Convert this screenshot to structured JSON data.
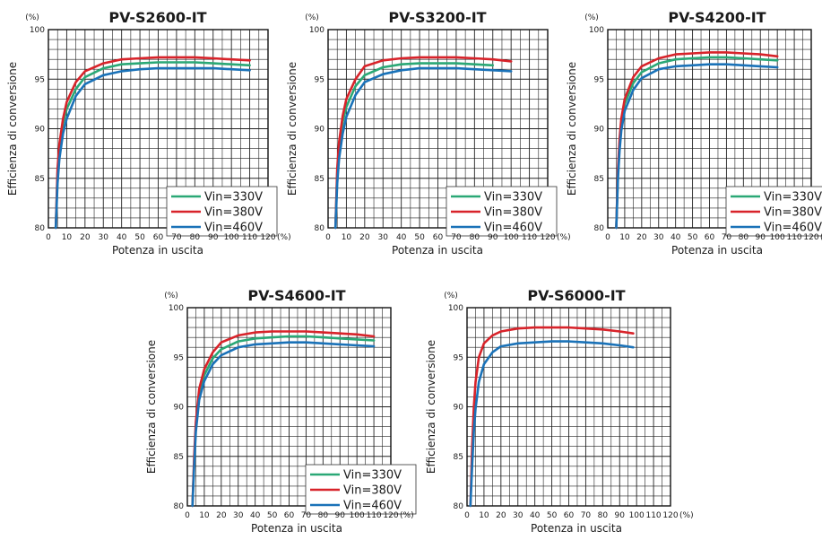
{
  "chart_data": [
    {
      "type": "line",
      "title": "PV-S2600-IT",
      "xlabel": "Potenza in uscita",
      "ylabel": "Efficienza di conversione",
      "x_unit": "(%)",
      "y_unit": "(%)",
      "xlim": [
        0,
        120
      ],
      "ylim": [
        80,
        100
      ],
      "xticks": [
        "0",
        "10",
        "20",
        "30",
        "40",
        "50",
        "60",
        "70",
        "80",
        "90",
        "100",
        "110",
        "120"
      ],
      "yticks": [
        "80",
        "85",
        "90",
        "95",
        "100"
      ],
      "grid": true,
      "legend_position": "bottom-right",
      "series": [
        {
          "name": "Vin=330V",
          "color": "#2aa876",
          "x": [
            4,
            5,
            6,
            8,
            10,
            15,
            20,
            30,
            40,
            50,
            60,
            70,
            80,
            90,
            100,
            110
          ],
          "y": [
            80,
            85.5,
            88,
            90.5,
            92,
            94,
            95.2,
            96.1,
            96.5,
            96.6,
            96.7,
            96.7,
            96.7,
            96.6,
            96.5,
            96.4
          ]
        },
        {
          "name": "Vin=380V",
          "color": "#d8232a",
          "x": [
            4,
            5,
            6,
            8,
            10,
            15,
            20,
            30,
            40,
            50,
            60,
            70,
            80,
            90,
            100,
            110
          ],
          "y": [
            80,
            86,
            88.5,
            91,
            92.7,
            94.7,
            95.8,
            96.6,
            97.0,
            97.1,
            97.2,
            97.2,
            97.2,
            97.1,
            97.0,
            96.9
          ]
        },
        {
          "name": "Vin=460V",
          "color": "#1a72b8",
          "x": [
            4,
            5,
            6,
            8,
            10,
            15,
            20,
            30,
            40,
            50,
            60,
            70,
            80,
            90,
            100,
            110
          ],
          "y": [
            80,
            84.5,
            87,
            89.5,
            91,
            93.3,
            94.5,
            95.4,
            95.8,
            96.0,
            96.1,
            96.1,
            96.1,
            96.1,
            96.0,
            95.9
          ]
        }
      ]
    },
    {
      "type": "line",
      "title": "PV-S3200-IT",
      "xlabel": "Potenza in uscita",
      "ylabel": "Efficienza di conversione",
      "x_unit": "(%)",
      "y_unit": "(%)",
      "xlim": [
        0,
        120
      ],
      "ylim": [
        80,
        100
      ],
      "xticks": [
        "0",
        "10",
        "20",
        "30",
        "40",
        "50",
        "60",
        "70",
        "80",
        "90",
        "100",
        "110",
        "120"
      ],
      "yticks": [
        "80",
        "85",
        "90",
        "95",
        "100"
      ],
      "grid": true,
      "legend_position": "bottom-right",
      "series": [
        {
          "name": "Vin=330V",
          "color": "#2aa876",
          "x": [
            4,
            5,
            6,
            8,
            10,
            15,
            20,
            30,
            40,
            50,
            60,
            70,
            80,
            90
          ],
          "y": [
            80,
            85.5,
            88,
            90.7,
            92.2,
            94.3,
            95.4,
            96.2,
            96.5,
            96.6,
            96.6,
            96.6,
            96.5,
            96.4
          ]
        },
        {
          "name": "Vin=380V",
          "color": "#d8232a",
          "x": [
            4,
            5,
            6,
            8,
            10,
            15,
            20,
            30,
            40,
            50,
            60,
            70,
            80,
            90,
            100
          ],
          "y": [
            80,
            86,
            88.7,
            91.3,
            93,
            95,
            96.3,
            96.9,
            97.1,
            97.2,
            97.2,
            97.2,
            97.1,
            97.0,
            96.8
          ]
        },
        {
          "name": "Vin=460V",
          "color": "#1a72b8",
          "x": [
            4,
            5,
            6,
            8,
            10,
            15,
            20,
            30,
            40,
            50,
            60,
            70,
            80,
            90,
            100
          ],
          "y": [
            80,
            84.5,
            87,
            89.5,
            91.2,
            93.4,
            94.7,
            95.5,
            95.9,
            96.1,
            96.1,
            96.1,
            96.0,
            95.9,
            95.8
          ]
        }
      ]
    },
    {
      "type": "line",
      "title": "PV-S4200-IT",
      "xlabel": "Potenza in uscita",
      "ylabel": "Efficienza di conversione",
      "x_unit": "(%)",
      "y_unit": "(%)",
      "xlim": [
        0,
        120
      ],
      "ylim": [
        80,
        100
      ],
      "xticks": [
        "0",
        "10",
        "20",
        "30",
        "40",
        "50",
        "60",
        "70",
        "80",
        "90",
        "100",
        "110",
        "120"
      ],
      "yticks": [
        "80",
        "85",
        "90",
        "95",
        "100"
      ],
      "grid": true,
      "legend_position": "bottom-right",
      "series": [
        {
          "name": "Vin=330V",
          "color": "#2aa876",
          "x": [
            5,
            6,
            7,
            8,
            10,
            15,
            20,
            30,
            40,
            50,
            60,
            70,
            80,
            90,
            100
          ],
          "y": [
            80,
            85.5,
            88.5,
            90.5,
            92.5,
            94.6,
            95.7,
            96.6,
            97.0,
            97.1,
            97.2,
            97.2,
            97.1,
            97.0,
            96.9
          ]
        },
        {
          "name": "Vin=380V",
          "color": "#d8232a",
          "x": [
            5,
            6,
            7,
            8,
            10,
            15,
            20,
            30,
            40,
            50,
            60,
            70,
            80,
            90,
            100
          ],
          "y": [
            80,
            86,
            89,
            91,
            93,
            95.2,
            96.3,
            97.1,
            97.5,
            97.6,
            97.7,
            97.7,
            97.6,
            97.5,
            97.3
          ]
        },
        {
          "name": "Vin=460V",
          "color": "#1a72b8",
          "x": [
            5,
            6,
            7,
            8,
            10,
            15,
            20,
            30,
            40,
            50,
            60,
            70,
            80,
            90,
            100
          ],
          "y": [
            80,
            85,
            87.8,
            89.8,
            91.8,
            93.9,
            95.1,
            96.0,
            96.3,
            96.4,
            96.5,
            96.5,
            96.4,
            96.3,
            96.2
          ]
        }
      ]
    },
    {
      "type": "line",
      "title": "PV-S4600-IT",
      "xlabel": "Potenza in uscita",
      "ylabel": "Efficienza di conversione",
      "x_unit": "(%)",
      "y_unit": "(%)",
      "xlim": [
        0,
        120
      ],
      "ylim": [
        80,
        100
      ],
      "xticks": [
        "0",
        "10",
        "20",
        "30",
        "40",
        "50",
        "60",
        "70",
        "80",
        "90",
        "100",
        "110",
        "120"
      ],
      "yticks": [
        "80",
        "85",
        "90",
        "95",
        "100"
      ],
      "grid": true,
      "legend_position": "bottom-right",
      "series": [
        {
          "name": "Vin=330V",
          "color": "#2aa876",
          "x": [
            3,
            4,
            5,
            7,
            10,
            15,
            20,
            30,
            40,
            50,
            60,
            70,
            80,
            90,
            100,
            110
          ],
          "y": [
            80,
            84.5,
            88,
            91.3,
            93.2,
            94.9,
            95.8,
            96.6,
            96.9,
            97.0,
            97.1,
            97.1,
            97.0,
            96.9,
            96.8,
            96.7
          ]
        },
        {
          "name": "Vin=380V",
          "color": "#d8232a",
          "x": [
            3,
            4,
            5,
            7,
            10,
            15,
            20,
            30,
            40,
            50,
            60,
            70,
            80,
            90,
            100,
            110
          ],
          "y": [
            80,
            85,
            88.5,
            91.8,
            93.8,
            95.5,
            96.5,
            97.2,
            97.5,
            97.6,
            97.6,
            97.6,
            97.5,
            97.4,
            97.3,
            97.1
          ]
        },
        {
          "name": "Vin=460V",
          "color": "#1a72b8",
          "x": [
            3,
            4,
            5,
            7,
            10,
            15,
            20,
            30,
            40,
            50,
            60,
            70,
            80,
            90,
            100,
            110
          ],
          "y": [
            80,
            84,
            87.5,
            90.7,
            92.6,
            94.3,
            95.2,
            96.0,
            96.3,
            96.4,
            96.5,
            96.5,
            96.4,
            96.3,
            96.2,
            96.1
          ]
        }
      ]
    },
    {
      "type": "line",
      "title": "PV-S6000-IT",
      "xlabel": "Potenza in uscita",
      "ylabel": "Efficienza di conversione",
      "x_unit": "(%)",
      "y_unit": "(%)",
      "xlim": [
        0,
        120
      ],
      "ylim": [
        80,
        100
      ],
      "xticks": [
        "0",
        "10",
        "20",
        "30",
        "40",
        "50",
        "60",
        "70",
        "80",
        "90",
        "100",
        "110",
        "120"
      ],
      "yticks": [
        "80",
        "85",
        "90",
        "95",
        "100"
      ],
      "grid": true,
      "legend_position": "bottom-right",
      "series": [
        {
          "name": "Vin=380V",
          "color": "#d8232a",
          "x": [
            2,
            3,
            4,
            5,
            7,
            10,
            15,
            20,
            30,
            40,
            50,
            60,
            70,
            80,
            90,
            98
          ],
          "y": [
            80,
            86,
            90,
            92.5,
            95,
            96.4,
            97.2,
            97.6,
            97.9,
            98.0,
            98.0,
            98.0,
            97.9,
            97.8,
            97.6,
            97.4
          ]
        },
        {
          "name": "Vin=460V",
          "color": "#1a72b8",
          "x": [
            2,
            3,
            4,
            5,
            7,
            10,
            15,
            20,
            30,
            40,
            50,
            60,
            70,
            80,
            90,
            98
          ],
          "y": [
            80,
            84,
            87.5,
            89.8,
            92.5,
            94.3,
            95.5,
            96.1,
            96.4,
            96.5,
            96.6,
            96.6,
            96.5,
            96.4,
            96.2,
            96.0
          ]
        }
      ]
    }
  ]
}
